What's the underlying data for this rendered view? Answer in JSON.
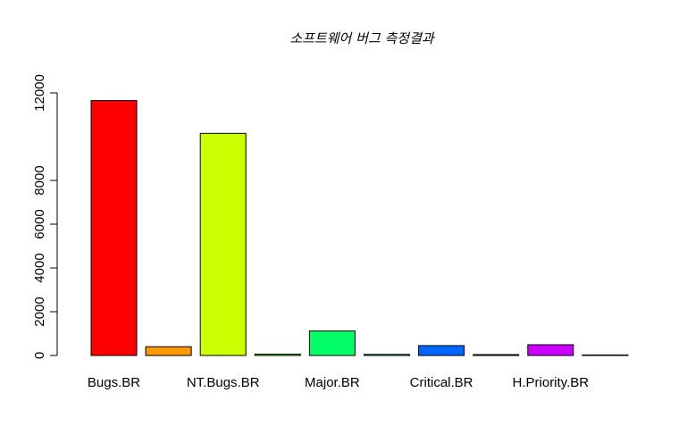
{
  "chart_data": {
    "type": "bar",
    "title": "소프트웨어 버그 측정결과",
    "xlabel": "",
    "ylabel": "",
    "ylim": [
      0,
      12000
    ],
    "yticks": [
      0,
      2000,
      4000,
      6000,
      8000,
      12000
    ],
    "ytick_labels": [
      "0",
      "2000",
      "4000",
      "6000",
      "8000",
      "12000"
    ],
    "categories": [
      "Bugs.BR",
      "",
      "NT.Bugs.BR",
      "",
      "Major.BR",
      "",
      "Critical.BR",
      "",
      "H.Priority.BR",
      ""
    ],
    "values": [
      11650,
      400,
      10150,
      60,
      1120,
      50,
      450,
      40,
      490,
      20
    ],
    "colors": [
      "#FF0000",
      "#FF9900",
      "#CCFF00",
      "#33FF00",
      "#00FF66",
      "#00FFFF",
      "#0066FF",
      "#3300FF",
      "#CC00FF",
      "#FF0099"
    ],
    "grid": false,
    "legend": "none"
  }
}
